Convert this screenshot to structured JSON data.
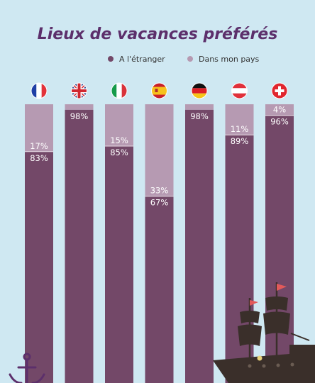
{
  "chart_data": {
    "type": "bar",
    "stacked": true,
    "title": "Lieux de vacances préférés",
    "categories": [
      "France",
      "Royaume-Uni",
      "Italie",
      "Espagne",
      "Allemagne",
      "Autriche",
      "Suisse"
    ],
    "category_icons": [
      "flag-france-icon",
      "flag-uk-icon",
      "flag-italy-icon",
      "flag-spain-icon",
      "flag-germany-icon",
      "flag-austria-icon",
      "flag-switzerland-icon"
    ],
    "ylim": [
      0,
      100
    ],
    "unit": "%",
    "legend_position": "top-center",
    "grid": false,
    "series": [
      {
        "name": "A l'étranger",
        "color": "#734868",
        "values": [
          83,
          98,
          85,
          67,
          98,
          89,
          96
        ]
      },
      {
        "name": "Dans mon pays",
        "color": "#b69ab2",
        "values": [
          17,
          0,
          15,
          33,
          0,
          11,
          4
        ]
      }
    ]
  },
  "colors": {
    "background": "#cfe8f2",
    "title": "#5c2f6b",
    "silhouette": "#3a2f2a"
  }
}
